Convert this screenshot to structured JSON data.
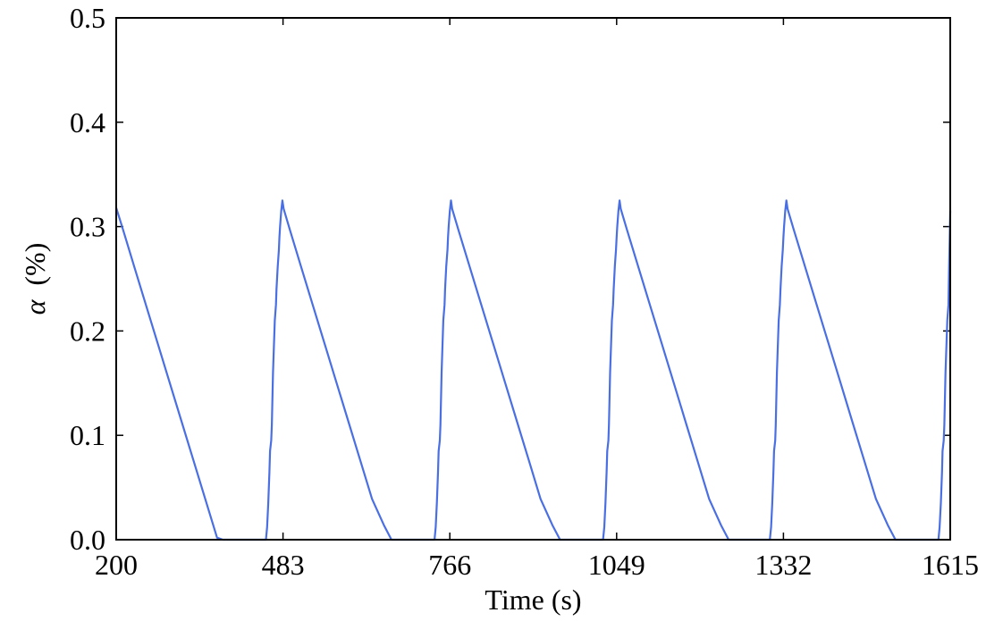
{
  "chart_data": {
    "type": "line",
    "title": "",
    "xlabel": "Time (s)",
    "ylabel_symbol": "α",
    "ylabel_unit": "(%)",
    "xlim": [
      200,
      1615
    ],
    "ylim": [
      0.0,
      0.5
    ],
    "xticks": [
      200,
      483,
      766,
      1049,
      1332,
      1615
    ],
    "xtick_labels": [
      "200",
      "483",
      "766",
      "1049",
      "1332",
      "1615"
    ],
    "yticks": [
      0.0,
      0.1,
      0.2,
      0.3,
      0.4,
      0.5
    ],
    "ytick_labels": [
      "0.0",
      "0.1",
      "0.2",
      "0.3",
      "0.4",
      "0.5"
    ],
    "grid": false,
    "line_color": "#4a6fe3",
    "series": [
      {
        "x": [
          200,
          211,
          231,
          251,
          271,
          291,
          311,
          331,
          351,
          371,
          381,
          386,
          454,
          456,
          458,
          460,
          461,
          463,
          464,
          466,
          469,
          471,
          472,
          474,
          476,
          477,
          478,
          480,
          482,
          484,
          494,
          514,
          534,
          554,
          574,
          594,
          614,
          634,
          654,
          667,
          672,
          740,
          742,
          744,
          746,
          747,
          749,
          750,
          752,
          755,
          757,
          758,
          760,
          762,
          763,
          764,
          766,
          768,
          770,
          780,
          800,
          820,
          840,
          860,
          880,
          900,
          920,
          940,
          953,
          958,
          1026,
          1028,
          1030,
          1032,
          1033,
          1035,
          1036,
          1038,
          1041,
          1043,
          1044,
          1046,
          1048,
          1049,
          1050,
          1052,
          1054,
          1056,
          1066,
          1086,
          1106,
          1126,
          1146,
          1166,
          1186,
          1206,
          1226,
          1239,
          1244,
          1309,
          1311,
          1313,
          1315,
          1316,
          1318,
          1319,
          1321,
          1324,
          1326,
          1327,
          1329,
          1331,
          1332,
          1333,
          1335,
          1337,
          1339,
          1349,
          1369,
          1389,
          1409,
          1429,
          1449,
          1469,
          1489,
          1509,
          1522,
          1527,
          1595,
          1597,
          1599,
          1601,
          1602,
          1604,
          1605,
          1607,
          1610,
          1612,
          1613,
          1615
        ],
        "y": [
          0.318,
          0.298,
          0.261,
          0.224,
          0.187,
          0.15,
          0.113,
          0.076,
          0.039,
          0.002,
          0.0,
          0.0,
          0.0,
          0.012,
          0.035,
          0.065,
          0.085,
          0.095,
          0.11,
          0.16,
          0.21,
          0.225,
          0.24,
          0.262,
          0.278,
          0.29,
          0.3,
          0.315,
          0.325,
          0.317,
          0.298,
          0.261,
          0.224,
          0.187,
          0.15,
          0.113,
          0.076,
          0.039,
          0.014,
          0.0,
          0.0,
          0.0,
          0.012,
          0.035,
          0.065,
          0.085,
          0.095,
          0.11,
          0.16,
          0.21,
          0.225,
          0.24,
          0.262,
          0.278,
          0.29,
          0.3,
          0.315,
          0.325,
          0.317,
          0.298,
          0.261,
          0.224,
          0.187,
          0.15,
          0.113,
          0.076,
          0.039,
          0.014,
          0.0,
          0.0,
          0.0,
          0.012,
          0.035,
          0.065,
          0.085,
          0.095,
          0.11,
          0.16,
          0.21,
          0.225,
          0.24,
          0.262,
          0.278,
          0.29,
          0.3,
          0.315,
          0.325,
          0.317,
          0.298,
          0.261,
          0.224,
          0.187,
          0.15,
          0.113,
          0.076,
          0.039,
          0.014,
          0.0,
          0.0,
          0.0,
          0.012,
          0.035,
          0.065,
          0.085,
          0.095,
          0.11,
          0.16,
          0.21,
          0.225,
          0.24,
          0.262,
          0.278,
          0.29,
          0.3,
          0.315,
          0.325,
          0.317,
          0.298,
          0.261,
          0.224,
          0.187,
          0.15,
          0.113,
          0.076,
          0.039,
          0.014,
          0.0,
          0.0,
          0.0,
          0.012,
          0.035,
          0.065,
          0.085,
          0.095,
          0.11,
          0.16,
          0.21,
          0.225,
          0.26,
          0.315
        ]
      }
    ]
  }
}
